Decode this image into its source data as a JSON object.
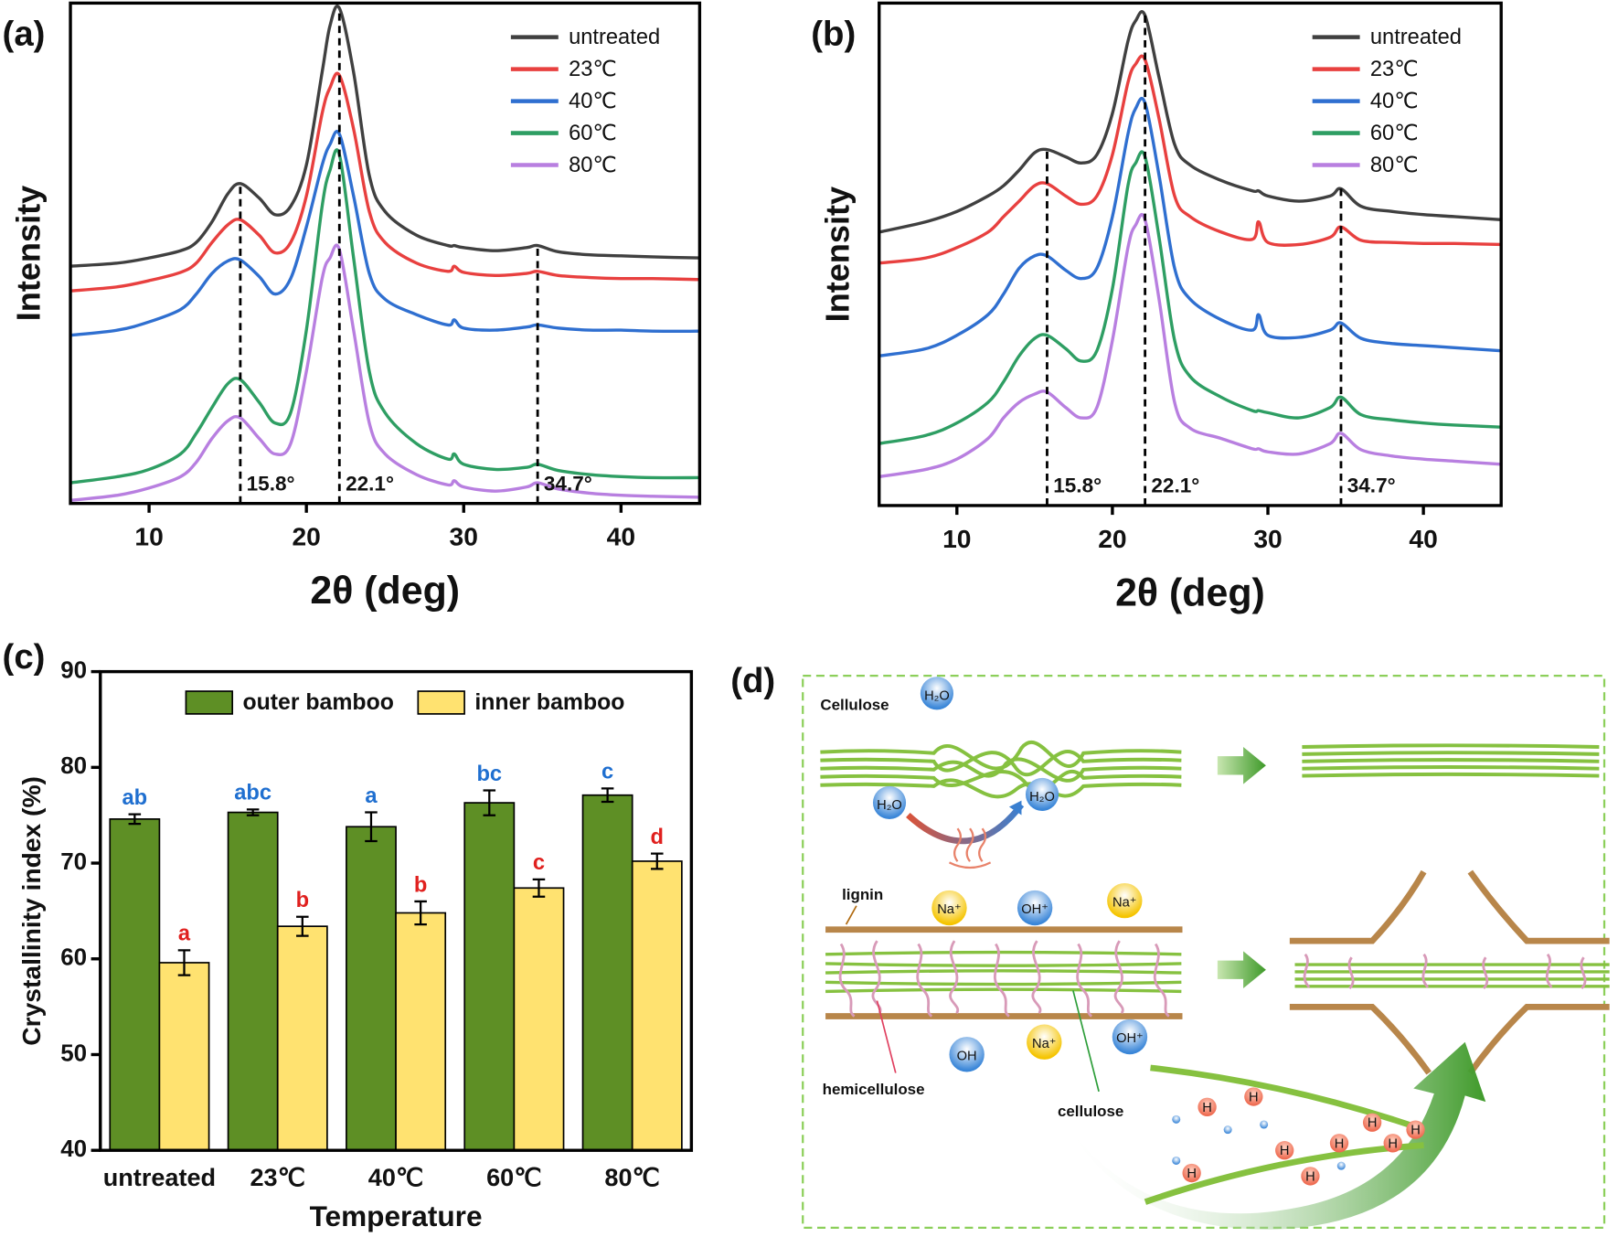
{
  "chart_data": [
    {
      "type": "line",
      "panel": "(a)",
      "xlabel": "2θ (deg)",
      "ylabel": "Intensity",
      "x": [
        5,
        8,
        10,
        12,
        13,
        14,
        15,
        15.8,
        17,
        18,
        19,
        20,
        21,
        21.5,
        22.1,
        23,
        24,
        25,
        27,
        29,
        29.4,
        30,
        32,
        34,
        34.7,
        36,
        38,
        40,
        42,
        45
      ],
      "xlim": [
        5,
        45
      ],
      "xticks": [
        10,
        20,
        30,
        40
      ],
      "ylim": [
        0,
        485
      ],
      "legend": "upper right",
      "series": [
        {
          "name": "untreated",
          "color": "#404040",
          "values": [
            230,
            233,
            238,
            245,
            253,
            273,
            300,
            310,
            296,
            280,
            288,
            328,
            418,
            463,
            480,
            418,
            318,
            283,
            260,
            250,
            250,
            248,
            245,
            248,
            250,
            244,
            241,
            240,
            239,
            238
          ]
        },
        {
          "name": "23℃",
          "color": "#e8403f",
          "values": [
            206,
            210,
            216,
            224,
            233,
            253,
            270,
            275,
            260,
            243,
            253,
            298,
            378,
            403,
            415,
            363,
            283,
            253,
            233,
            225,
            230,
            224,
            221,
            223,
            225,
            221,
            219,
            218,
            218,
            217
          ]
        },
        {
          "name": "40℃",
          "color": "#2f6fd0",
          "values": [
            163,
            168,
            176,
            188,
            203,
            223,
            235,
            236,
            220,
            203,
            218,
            268,
            328,
            348,
            358,
            298,
            223,
            198,
            183,
            173,
            178,
            170,
            168,
            171,
            173,
            170,
            168,
            168,
            167,
            167
          ]
        },
        {
          "name": "60℃",
          "color": "#2e9e63",
          "values": [
            20,
            26,
            33,
            48,
            68,
            93,
            116,
            120,
            98,
            78,
            88,
            168,
            288,
            323,
            338,
            238,
            128,
            88,
            58,
            43,
            48,
            38,
            33,
            35,
            38,
            32,
            28,
            26,
            25,
            25
          ]
        },
        {
          "name": "80℃",
          "color": "#b87fe0",
          "values": [
            3,
            8,
            15,
            26,
            40,
            63,
            80,
            83,
            63,
            48,
            58,
            128,
            218,
            238,
            246,
            168,
            78,
            48,
            28,
            18,
            22,
            16,
            12,
            16,
            20,
            14,
            10,
            8,
            7,
            6
          ]
        }
      ],
      "annotations": [
        {
          "x": 15.8,
          "label": "15.8°"
        },
        {
          "x": 22.1,
          "label": "22.1°"
        },
        {
          "x": 34.7,
          "label": "34.7°"
        }
      ]
    },
    {
      "type": "line",
      "panel": "(b)",
      "xlabel": "2θ (deg)",
      "ylabel": "Intensity",
      "x": [
        5,
        8,
        10,
        12,
        13,
        14,
        15,
        15.8,
        17,
        18,
        19,
        20,
        21,
        21.5,
        22.1,
        23,
        24,
        25,
        27,
        29,
        29.4,
        30,
        32,
        34,
        34.7,
        36,
        38,
        40,
        42,
        45
      ],
      "xlim": [
        5,
        45
      ],
      "xticks": [
        10,
        20,
        30,
        40
      ],
      "ylim": [
        0,
        487
      ],
      "legend": "upper right",
      "series": [
        {
          "name": "untreated",
          "color": "#404040",
          "values": [
            265,
            275,
            285,
            300,
            310,
            325,
            342,
            345,
            338,
            332,
            340,
            380,
            450,
            470,
            475,
            415,
            350,
            330,
            315,
            305,
            305,
            300,
            295,
            300,
            307,
            290,
            285,
            282,
            280,
            277
          ]
        },
        {
          "name": "23℃",
          "color": "#e8403f",
          "values": [
            235,
            240,
            250,
            265,
            280,
            295,
            310,
            312,
            300,
            292,
            300,
            340,
            410,
            428,
            432,
            375,
            300,
            280,
            265,
            258,
            275,
            255,
            253,
            260,
            270,
            257,
            255,
            254,
            254,
            253
          ]
        },
        {
          "name": "40℃",
          "color": "#2f6fd0",
          "values": [
            145,
            152,
            165,
            185,
            205,
            230,
            242,
            242,
            228,
            220,
            230,
            280,
            360,
            385,
            390,
            320,
            230,
            200,
            180,
            170,
            185,
            165,
            163,
            170,
            177,
            162,
            157,
            155,
            153,
            150
          ]
        },
        {
          "name": "60℃",
          "color": "#2e9e63",
          "values": [
            60,
            68,
            80,
            100,
            120,
            145,
            162,
            165,
            152,
            140,
            150,
            210,
            310,
            332,
            338,
            260,
            160,
            125,
            105,
            92,
            92,
            90,
            85,
            95,
            105,
            88,
            83,
            80,
            78,
            76
          ]
        },
        {
          "name": "80℃",
          "color": "#b87fe0",
          "values": [
            28,
            35,
            45,
            65,
            85,
            100,
            108,
            110,
            95,
            85,
            95,
            160,
            250,
            272,
            277,
            200,
            100,
            75,
            65,
            55,
            55,
            52,
            50,
            60,
            70,
            54,
            48,
            45,
            43,
            40
          ]
        }
      ],
      "annotations": [
        {
          "x": 15.8,
          "label": "15.8°"
        },
        {
          "x": 22.1,
          "label": "22.1°"
        },
        {
          "x": 34.7,
          "label": "34.7°"
        }
      ]
    },
    {
      "type": "bar",
      "panel": "(c)",
      "xlabel": "Temperature",
      "ylabel": "Crystallinity index (%)",
      "categories": [
        "untreated",
        "23℃",
        "40℃",
        "60℃",
        "80℃"
      ],
      "ylim": [
        40,
        90
      ],
      "yticks": [
        40,
        50,
        60,
        70,
        80,
        90
      ],
      "legend": "upper center",
      "series": [
        {
          "name": "outer bamboo",
          "color": "#5e8f25",
          "letter_color": "#1f6fd0",
          "values": [
            74.6,
            75.3,
            73.8,
            76.3,
            77.1
          ],
          "errors": [
            0.5,
            0.3,
            1.5,
            1.3,
            0.7
          ],
          "letters": [
            "ab",
            "abc",
            "a",
            "bc",
            "c"
          ]
        },
        {
          "name": "inner bamboo",
          "color": "#ffe270",
          "letter_color": "#e0201e",
          "values": [
            59.6,
            63.4,
            64.8,
            67.4,
            70.2
          ],
          "errors": [
            1.3,
            1.0,
            1.2,
            0.9,
            0.8
          ],
          "letters": [
            "a",
            "b",
            "b",
            "c",
            "d"
          ]
        }
      ]
    }
  ],
  "diagram": {
    "panel": "(d)",
    "cellulose_title": "Cellulose",
    "water": "H₂O",
    "lignin": "lignin",
    "hemicellulose": "hemicellulose",
    "cellulose": "cellulose",
    "ions": [
      "Na⁺",
      "OH⁺",
      "Na⁺",
      "OH",
      "Na⁺",
      "OH⁺"
    ],
    "hydrogen": "H"
  }
}
